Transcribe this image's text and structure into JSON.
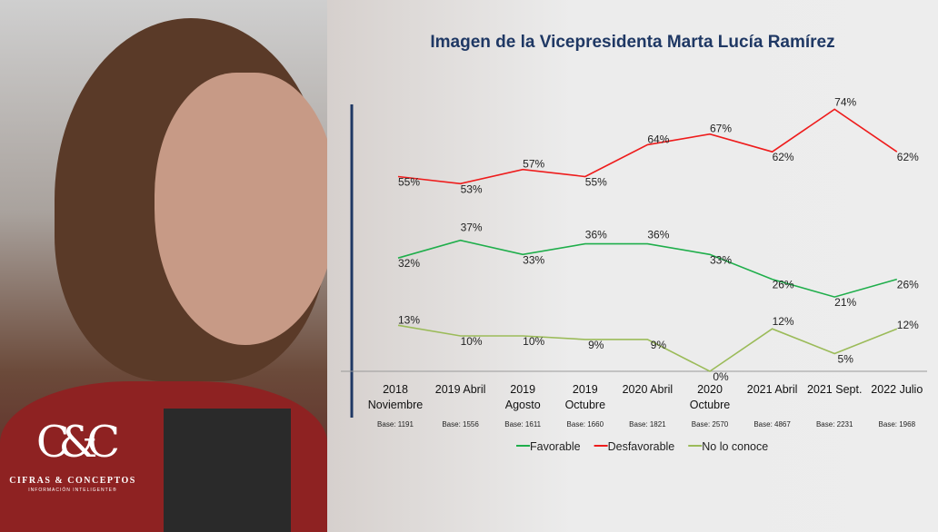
{
  "logo": {
    "mark": "C&C",
    "name": "CIFRAS & CONCEPTOS",
    "tagline": "INFORMACIÓN INTELIGENTE®"
  },
  "chart_data": {
    "type": "line",
    "title": "Imagen de la Vicepresidenta Marta Lucía Ramírez",
    "categories": [
      [
        "2018",
        "Noviembre"
      ],
      [
        "2019 Abril"
      ],
      [
        "2019",
        "Agosto"
      ],
      [
        "2019",
        "Octubre"
      ],
      [
        "2020 Abril"
      ],
      [
        "2020",
        "Octubre"
      ],
      [
        "2021 Abril"
      ],
      [
        "2021 Sept."
      ],
      [
        "2022 Julio"
      ]
    ],
    "bases": [
      "Base: 1191",
      "Base: 1556",
      "Base: 1611",
      "Base: 1660",
      "Base: 1821",
      "Base: 2570",
      "Base: 4867",
      "Base: 2231",
      "Base: 1968"
    ],
    "series": [
      {
        "name": "Favorable",
        "color": "#1fae4b",
        "values": [
          32,
          37,
          33,
          36,
          36,
          33,
          26,
          21,
          26
        ]
      },
      {
        "name": "Desfavorable",
        "color": "#ee1c1c",
        "values": [
          55,
          53,
          57,
          55,
          64,
          67,
          62,
          74,
          62
        ]
      },
      {
        "name": "No lo conoce",
        "color": "#9bbb59",
        "values": [
          13,
          10,
          10,
          9,
          9,
          0,
          12,
          5,
          12
        ]
      }
    ],
    "ylim": [
      0,
      80
    ],
    "unit": "%",
    "legend": "bottom",
    "grid": false
  }
}
